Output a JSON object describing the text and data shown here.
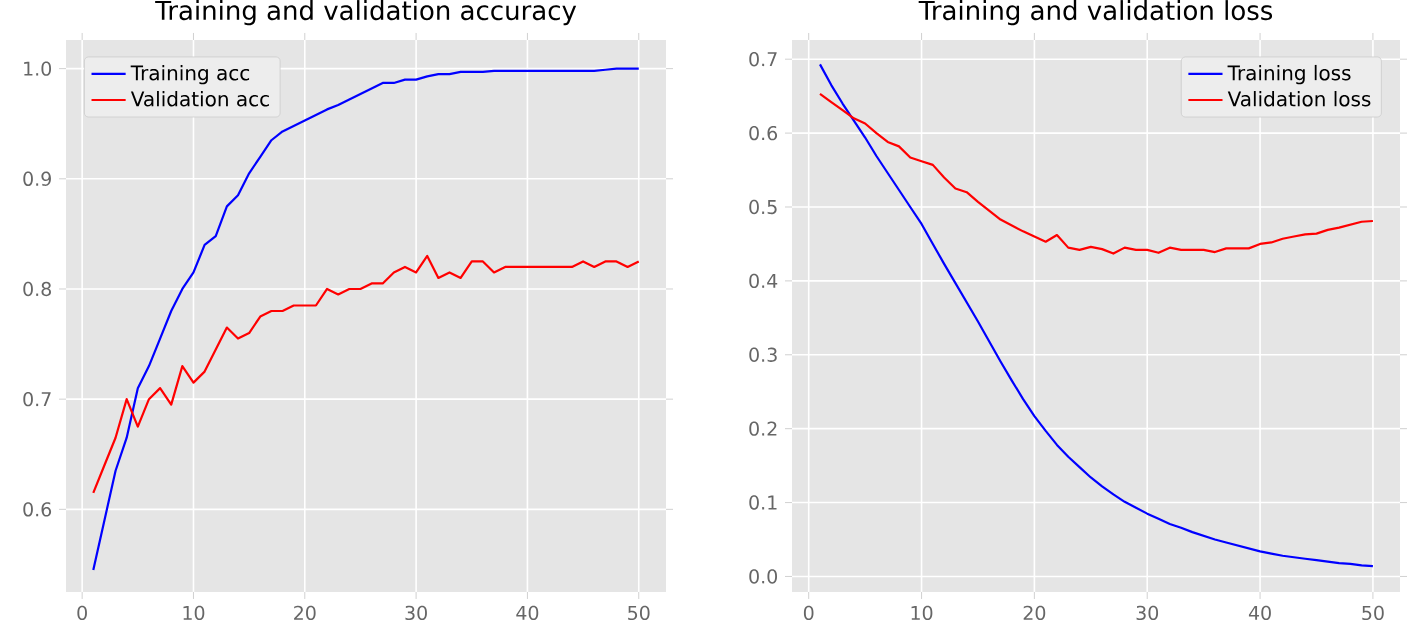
{
  "chart_data": [
    {
      "type": "line",
      "title": "Training and validation accuracy",
      "x": [
        1,
        2,
        3,
        4,
        5,
        6,
        7,
        8,
        9,
        10,
        11,
        12,
        13,
        14,
        15,
        16,
        17,
        18,
        19,
        20,
        21,
        22,
        23,
        24,
        25,
        26,
        27,
        28,
        29,
        30,
        31,
        32,
        33,
        34,
        35,
        36,
        37,
        38,
        39,
        40,
        41,
        42,
        43,
        44,
        45,
        46,
        47,
        48,
        49,
        50
      ],
      "series": [
        {
          "name": "Training acc",
          "color": "#0000ff",
          "values": [
            0.545,
            0.59,
            0.635,
            0.665,
            0.71,
            0.73,
            0.755,
            0.78,
            0.8,
            0.815,
            0.84,
            0.848,
            0.875,
            0.885,
            0.905,
            0.92,
            0.935,
            0.943,
            0.948,
            0.953,
            0.958,
            0.963,
            0.967,
            0.972,
            0.977,
            0.982,
            0.987,
            0.987,
            0.99,
            0.99,
            0.993,
            0.995,
            0.995,
            0.997,
            0.997,
            0.997,
            0.998,
            0.998,
            0.998,
            0.998,
            0.998,
            0.998,
            0.998,
            0.998,
            0.998,
            0.998,
            0.999,
            1.0,
            1.0,
            1.0
          ]
        },
        {
          "name": "Validation acc",
          "color": "#ff0000",
          "values": [
            0.615,
            0.64,
            0.665,
            0.7,
            0.675,
            0.7,
            0.71,
            0.695,
            0.73,
            0.715,
            0.725,
            0.745,
            0.765,
            0.755,
            0.76,
            0.775,
            0.78,
            0.78,
            0.785,
            0.785,
            0.785,
            0.8,
            0.795,
            0.8,
            0.8,
            0.805,
            0.805,
            0.815,
            0.82,
            0.815,
            0.83,
            0.81,
            0.815,
            0.81,
            0.825,
            0.825,
            0.815,
            0.82,
            0.82,
            0.82,
            0.82,
            0.82,
            0.82,
            0.82,
            0.825,
            0.82,
            0.825,
            0.825,
            0.82,
            0.825
          ]
        }
      ],
      "xlim": [
        -1.45,
        52.45
      ],
      "ylim": [
        0.525,
        1.026
      ],
      "xticks": [
        0,
        10,
        20,
        30,
        40,
        50
      ],
      "yticks": [
        {
          "value": 0.6,
          "label": "0.6"
        },
        {
          "value": 0.7,
          "label": "0.7"
        },
        {
          "value": 0.8,
          "label": "0.8"
        },
        {
          "value": 0.9,
          "label": "0.9"
        },
        {
          "value": 1.0,
          "label": "1.0"
        }
      ],
      "grid": true,
      "legend": "top left"
    },
    {
      "type": "line",
      "title": "Training and validation loss",
      "x": [
        1,
        2,
        3,
        4,
        5,
        6,
        7,
        8,
        9,
        10,
        11,
        12,
        13,
        14,
        15,
        16,
        17,
        18,
        19,
        20,
        21,
        22,
        23,
        24,
        25,
        26,
        27,
        28,
        29,
        30,
        31,
        32,
        33,
        34,
        35,
        36,
        37,
        38,
        39,
        40,
        41,
        42,
        43,
        44,
        45,
        46,
        47,
        48,
        49,
        50
      ],
      "series": [
        {
          "name": "Training loss",
          "color": "#0000ff",
          "values": [
            0.693,
            0.665,
            0.64,
            0.617,
            0.594,
            0.569,
            0.546,
            0.523,
            0.5,
            0.477,
            0.45,
            0.423,
            0.397,
            0.371,
            0.345,
            0.318,
            0.291,
            0.265,
            0.24,
            0.217,
            0.197,
            0.178,
            0.162,
            0.148,
            0.134,
            0.122,
            0.111,
            0.101,
            0.093,
            0.085,
            0.078,
            0.071,
            0.066,
            0.06,
            0.055,
            0.05,
            0.046,
            0.042,
            0.038,
            0.034,
            0.031,
            0.028,
            0.026,
            0.024,
            0.022,
            0.02,
            0.018,
            0.017,
            0.015,
            0.014
          ]
        },
        {
          "name": "Validation loss",
          "color": "#ff0000",
          "values": [
            0.653,
            0.642,
            0.631,
            0.62,
            0.613,
            0.6,
            0.588,
            0.582,
            0.567,
            0.562,
            0.557,
            0.54,
            0.525,
            0.52,
            0.507,
            0.495,
            0.483,
            0.475,
            0.467,
            0.46,
            0.453,
            0.462,
            0.445,
            0.442,
            0.446,
            0.443,
            0.437,
            0.445,
            0.442,
            0.442,
            0.438,
            0.445,
            0.442,
            0.442,
            0.442,
            0.439,
            0.444,
            0.444,
            0.444,
            0.45,
            0.452,
            0.457,
            0.46,
            0.463,
            0.464,
            0.469,
            0.472,
            0.476,
            0.48,
            0.481
          ]
        }
      ],
      "xlim": [
        -1.48,
        52.4
      ],
      "ylim": [
        -0.021,
        0.726
      ],
      "xticks": [
        0,
        10,
        20,
        30,
        40,
        50
      ],
      "yticks": [
        {
          "value": 0.0,
          "label": "0.0"
        },
        {
          "value": 0.1,
          "label": "0.1"
        },
        {
          "value": 0.2,
          "label": "0.2"
        },
        {
          "value": 0.3,
          "label": "0.3"
        },
        {
          "value": 0.4,
          "label": "0.4"
        },
        {
          "value": 0.5,
          "label": "0.5"
        },
        {
          "value": 0.6,
          "label": "0.6"
        },
        {
          "value": 0.7,
          "label": "0.7"
        }
      ],
      "grid": true,
      "legend": "top right"
    }
  ]
}
